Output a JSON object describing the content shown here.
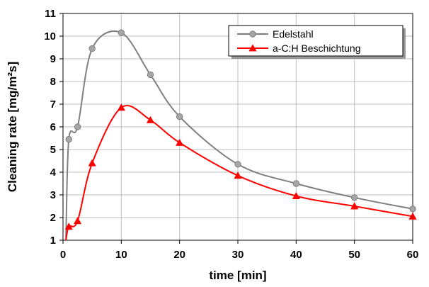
{
  "chart_data": {
    "type": "line",
    "title": "",
    "xlabel": "time [min]",
    "ylabel": "Cleaning rate [mg/m²s]",
    "xlim": [
      0,
      60
    ],
    "ylim": [
      1,
      11
    ],
    "xticks": [
      0,
      10,
      20,
      30,
      40,
      50,
      60
    ],
    "yticks": [
      1,
      2,
      3,
      4,
      5,
      6,
      7,
      8,
      9,
      10,
      11
    ],
    "grid": true,
    "legend_position": "top-right",
    "series": [
      {
        "name": "Edelstahl",
        "color": "#808080",
        "marker": "circle",
        "x": [
          0.5,
          1,
          2.5,
          5,
          10,
          15,
          20,
          30,
          40,
          50,
          60
        ],
        "y": [
          1.0,
          5.45,
          6.0,
          9.45,
          10.15,
          8.3,
          6.45,
          4.35,
          3.5,
          2.88,
          2.38
        ]
      },
      {
        "name": "a-C:H Beschichtung",
        "color": "#ff0000",
        "marker": "triangle",
        "x": [
          0.5,
          1,
          2.5,
          5,
          10,
          15,
          20,
          30,
          40,
          50,
          60
        ],
        "y": [
          1.0,
          1.6,
          1.85,
          4.4,
          6.85,
          6.3,
          5.3,
          3.85,
          2.95,
          2.5,
          2.05
        ]
      }
    ]
  }
}
